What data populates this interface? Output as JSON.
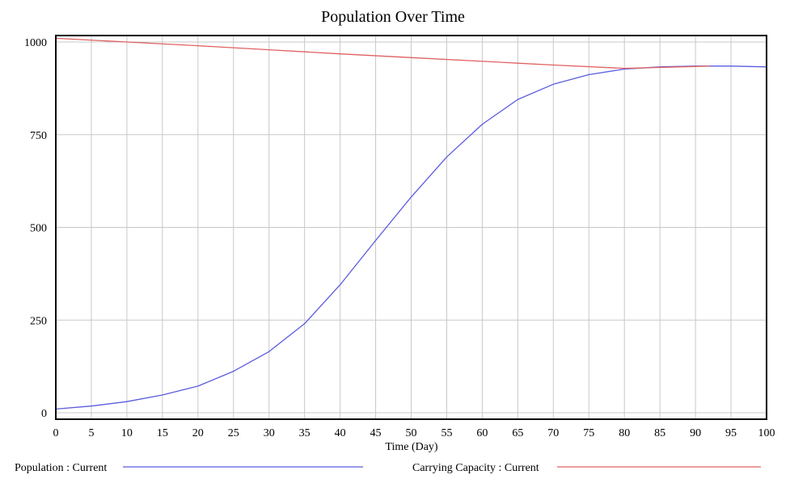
{
  "chart_data": {
    "type": "line",
    "title": "Population Over Time",
    "xlabel": "Time (Day)",
    "ylabel": "",
    "xlim": [
      0,
      100
    ],
    "ylim": [
      0,
      1000
    ],
    "xticks": [
      0,
      5,
      10,
      15,
      20,
      25,
      30,
      35,
      40,
      45,
      50,
      55,
      60,
      65,
      70,
      75,
      80,
      85,
      90,
      95,
      100
    ],
    "yticks": [
      0,
      250,
      500,
      750,
      1000
    ],
    "grid": true,
    "legend_position": "bottom",
    "series": [
      {
        "name": "Population : Current",
        "color": "#5b5bdf",
        "x": [
          0,
          5,
          10,
          15,
          20,
          25,
          30,
          35,
          40,
          45,
          50,
          55,
          60,
          65,
          70,
          75,
          80,
          85,
          90,
          95,
          100
        ],
        "y": [
          10,
          18,
          30,
          48,
          72,
          112,
          165,
          240,
          345,
          465,
          582,
          690,
          778,
          845,
          886,
          912,
          927,
          933,
          935,
          935,
          933
        ]
      },
      {
        "name": "Carrying Capacity : Current",
        "color": "#e06060",
        "x": [
          0,
          10,
          20,
          30,
          40,
          50,
          60,
          70,
          80,
          92
        ],
        "y": [
          1010,
          1000,
          990,
          979,
          968,
          958,
          948,
          938,
          929,
          935
        ]
      }
    ]
  }
}
